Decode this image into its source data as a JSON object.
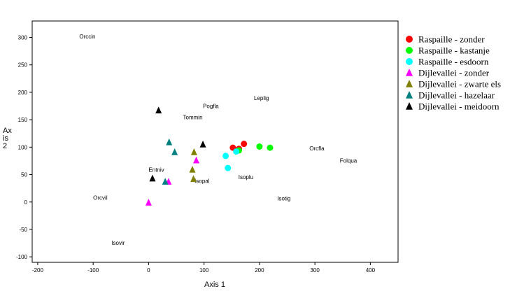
{
  "chart_data": {
    "type": "scatter",
    "xlabel": "Axis 1",
    "ylabel": "Axis 2",
    "xlim": [
      -210,
      450
    ],
    "ylim": [
      -110,
      330
    ],
    "xticks": [
      -200,
      -100,
      0,
      100,
      200,
      300,
      400
    ],
    "yticks": [
      -100,
      -50,
      0,
      50,
      100,
      150,
      200,
      250,
      300
    ],
    "grid": false,
    "legend_position": "right",
    "series": [
      {
        "name": "Raspaille - zonder",
        "marker": "circle",
        "color": "#ff0000",
        "points": [
          [
            152,
            99
          ],
          [
            163,
            97
          ],
          [
            172,
            106
          ]
        ]
      },
      {
        "name": "Raspaille - kastanje",
        "marker": "circle",
        "color": "#00ff00",
        "points": [
          [
            163,
            94
          ],
          [
            200,
            101
          ],
          [
            219,
            99
          ]
        ]
      },
      {
        "name": "Raspaille - esdoorn",
        "marker": "circle",
        "color": "#00ffff",
        "points": [
          [
            139,
            84
          ],
          [
            143,
            62
          ],
          [
            158,
            92
          ]
        ]
      },
      {
        "name": "Dijlevallei - zonder",
        "marker": "triangle",
        "color": "#ff00ff",
        "points": [
          [
            0,
            -1
          ],
          [
            36,
            37
          ],
          [
            86,
            76
          ]
        ]
      },
      {
        "name": "Dijlevallei - zwarte els",
        "marker": "triangle",
        "color": "#808000",
        "points": [
          [
            79,
            59
          ],
          [
            81,
            42
          ],
          [
            82,
            91
          ]
        ]
      },
      {
        "name": "Dijlevallei - hazelaar",
        "marker": "triangle",
        "color": "#008080",
        "points": [
          [
            30,
            37
          ],
          [
            37,
            109
          ],
          [
            47,
            91
          ]
        ]
      },
      {
        "name": "Dijlevallei - meidoorn",
        "marker": "triangle",
        "color": "#000000",
        "points": [
          [
            7,
            43
          ],
          [
            18,
            167
          ],
          [
            98,
            105
          ]
        ]
      }
    ],
    "annotations": [
      {
        "text": "Orccin",
        "x": -125,
        "y": 298
      },
      {
        "text": "Leplig",
        "x": 190,
        "y": 186
      },
      {
        "text": "Pogfla",
        "x": 98,
        "y": 171
      },
      {
        "text": "Tommin",
        "x": 62,
        "y": 151
      },
      {
        "text": "Orcfla",
        "x": 290,
        "y": 94
      },
      {
        "text": "Folqua",
        "x": 345,
        "y": 72
      },
      {
        "text": "Entniv",
        "x": 0,
        "y": 55
      },
      {
        "text": "Isoplu",
        "x": 162,
        "y": 42
      },
      {
        "text": "Isopal",
        "x": 83,
        "y": 35
      },
      {
        "text": "Orcvil",
        "x": -100,
        "y": 4
      },
      {
        "text": "Isotig",
        "x": 232,
        "y": 3
      },
      {
        "text": "Isovir",
        "x": -67,
        "y": -78
      }
    ]
  }
}
